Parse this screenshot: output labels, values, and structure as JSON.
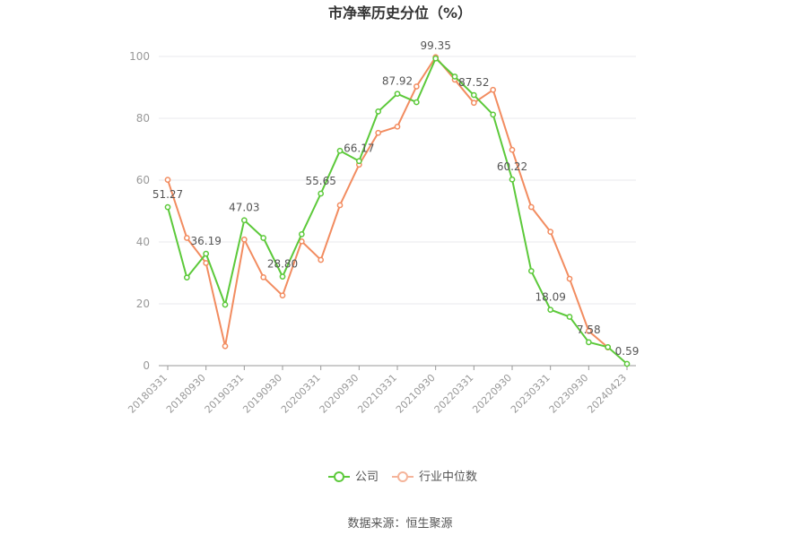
{
  "chart_data": {
    "type": "line",
    "title": "市净率历史分位（%）",
    "ylim": [
      0,
      100
    ],
    "yticks": [
      0,
      20,
      40,
      60,
      80,
      100
    ],
    "x_tick_labels": [
      "20180331",
      "20180930",
      "20190331",
      "20190930",
      "20200331",
      "20200930",
      "20210331",
      "20210930",
      "20220331",
      "20220930",
      "20230331",
      "20230930",
      "20240423"
    ],
    "grid": true,
    "legend_position": "bottom-center",
    "series": [
      {
        "name": "公司",
        "color": "#5cc93a",
        "values": [
          51.27,
          28.5,
          36.19,
          19.7,
          47.03,
          41.3,
          28.8,
          42.5,
          55.65,
          69.5,
          66.17,
          82.2,
          87.92,
          85.2,
          99.35,
          93.5,
          87.52,
          81.2,
          60.22,
          30.6,
          18.09,
          15.8,
          7.58,
          6.0,
          0.59
        ]
      },
      {
        "name": "行业中位数",
        "color": "#f28c60",
        "values": [
          60.1,
          41.3,
          33.2,
          6.3,
          40.8,
          28.6,
          22.7,
          40.2,
          34.2,
          51.9,
          65.0,
          75.3,
          77.3,
          90.3,
          99.8,
          92.5,
          85.0,
          89.2,
          69.8,
          51.3,
          43.3,
          28.1,
          11.2,
          5.9,
          null
        ]
      }
    ],
    "data_labels": [
      {
        "index": 0,
        "text": "51.27"
      },
      {
        "index": 2,
        "text": "36.19"
      },
      {
        "index": 4,
        "text": "47.03"
      },
      {
        "index": 6,
        "text": "28.80"
      },
      {
        "index": 8,
        "text": "55.65"
      },
      {
        "index": 10,
        "text": "66.17"
      },
      {
        "index": 12,
        "text": "87.92"
      },
      {
        "index": 14,
        "text": "99.35"
      },
      {
        "index": 16,
        "text": "87.52"
      },
      {
        "index": 18,
        "text": "60.22"
      },
      {
        "index": 20,
        "text": "18.09"
      },
      {
        "index": 22,
        "text": "7.58"
      },
      {
        "index": 24,
        "text": "0.59"
      }
    ]
  },
  "legend": [
    {
      "label": "公司",
      "color": "#5cc93a"
    },
    {
      "label": "行业中位数",
      "color": "#f5b49a"
    }
  ],
  "source": "数据来源：恒生聚源"
}
